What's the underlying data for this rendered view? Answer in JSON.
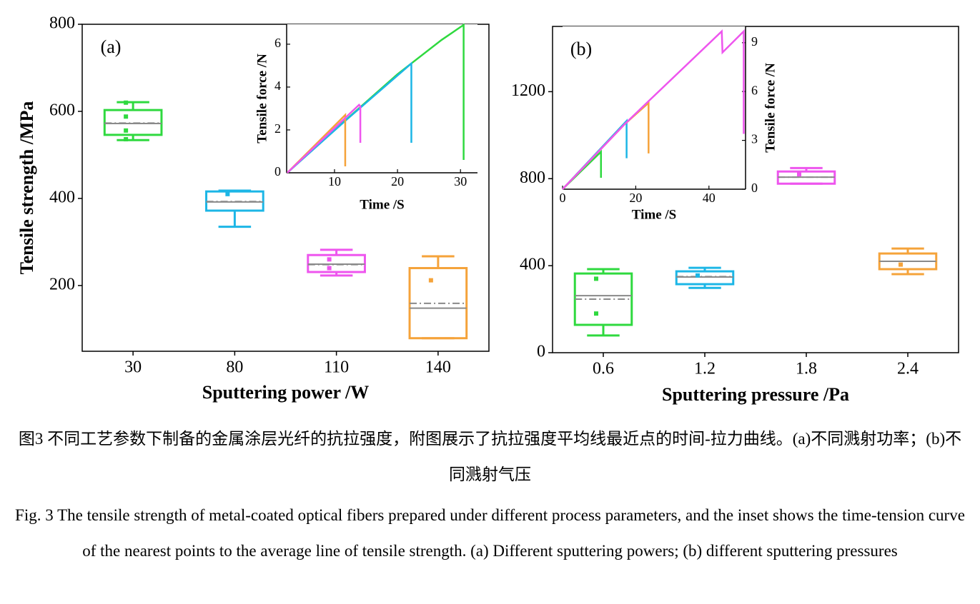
{
  "chart_data": [
    {
      "type": "box",
      "panel_label": "(a)",
      "x_label": "Sputtering power /W",
      "y_label": "Tensile strength /MPa",
      "categories": [
        "30",
        "80",
        "110",
        "140"
      ],
      "colors": [
        "#2fd93f",
        "#1cb6e6",
        "#ee55ee",
        "#f5a33a"
      ],
      "whisker_high": [
        621,
        418,
        282,
        267
      ],
      "q3": [
        603,
        416,
        270,
        240
      ],
      "median": [
        572,
        392,
        249,
        148
      ],
      "mean": [
        573,
        393,
        248,
        159
      ],
      "q1": [
        546,
        372,
        231,
        79
      ],
      "whisker_low": [
        534,
        335,
        223,
        79
      ],
      "points": [
        [
          620,
          588,
          556,
          536
        ],
        [
          410
        ],
        [
          260,
          240
        ],
        [
          212
        ]
      ],
      "ylim": [
        49,
        800
      ],
      "yticks": [
        200,
        400,
        600,
        800
      ]
    },
    {
      "type": "line",
      "x_label": "Time /S",
      "y_label": "Tensile force /N",
      "y_axis_side": "left",
      "xlim": [
        2.4,
        32.7
      ],
      "xticks": [
        10,
        20,
        30
      ],
      "ylim": [
        0,
        6.93
      ],
      "yticks": [
        0,
        2,
        4,
        6
      ],
      "series": [
        {
          "color": "#2fd93f",
          "x": [
            2.5,
            10,
            20,
            27,
            30.5,
            30.5
          ],
          "values": [
            0,
            2,
            4.6,
            6.2,
            6.9,
            0.6
          ]
        },
        {
          "color": "#1cb6e6",
          "x": [
            2.5,
            12,
            22.2,
            22.2
          ],
          "values": [
            0,
            2.5,
            5.1,
            1.4
          ]
        },
        {
          "color": "#f5a33a",
          "x": [
            2.5,
            11.7,
            11.7
          ],
          "values": [
            0,
            2.7,
            0.3
          ]
        },
        {
          "color": "#ee55ee",
          "x": [
            2.5,
            13.9,
            14.1,
            14.1
          ],
          "values": [
            0,
            3.17,
            3.1,
            1.4
          ]
        }
      ]
    },
    {
      "type": "box",
      "panel_label": "(b)",
      "x_label": "Sputtering pressure /Pa",
      "categories": [
        "0.6",
        "1.2",
        "1.8",
        "2.4"
      ],
      "colors": [
        "#2fd93f",
        "#1cb6e6",
        "#ee55ee",
        "#f5a33a"
      ],
      "whisker_high": [
        384,
        390,
        849,
        479
      ],
      "q3": [
        364,
        374,
        833,
        456
      ],
      "median": [
        262,
        348,
        807,
        420
      ],
      "mean": [
        246,
        350,
        807,
        420
      ],
      "q1": [
        128,
        315,
        777,
        384
      ],
      "whisker_low": [
        79,
        298,
        777,
        361
      ],
      "points": [
        [
          340,
          180
        ],
        [
          355
        ],
        [
          820
        ],
        [
          405
        ]
      ],
      "ylim": [
        0,
        1500
      ],
      "yticks": [
        0,
        400,
        800,
        1200
      ]
    },
    {
      "type": "line",
      "x_label": "Time /S",
      "y_label": "Tensile force /N",
      "y_axis_side": "right",
      "xlim": [
        0,
        50
      ],
      "xticks": [
        0,
        20,
        40
      ],
      "ylim": [
        0,
        10
      ],
      "yticks": [
        0,
        3,
        6,
        9
      ],
      "series": [
        {
          "color": "#2fd93f",
          "x": [
            0,
            10.5,
            10.5
          ],
          "values": [
            0,
            2.3,
            0.7
          ]
        },
        {
          "color": "#1cb6e6",
          "x": [
            0,
            17.5,
            17.5
          ],
          "values": [
            0,
            4.2,
            1.9
          ]
        },
        {
          "color": "#f5a33a",
          "x": [
            0,
            17,
            23.5,
            23.5
          ],
          "values": [
            0,
            4,
            5.3,
            2.2
          ]
        },
        {
          "color": "#ee55ee",
          "x": [
            0,
            17,
            23,
            43.5,
            43.7,
            49.5,
            49.5
          ],
          "values": [
            0,
            4,
            5.3,
            9.7,
            8.4,
            9.7,
            3.4
          ]
        }
      ]
    }
  ],
  "caption": {
    "zh": "图3  不同工艺参数下制备的金属涂层光纤的抗拉强度，附图展示了抗拉强度平均线最近点的时间-拉力曲线。(a)不同溅射功率；(b)不同溅射气压",
    "en": "Fig. 3 The tensile strength of metal-coated optical fibers prepared under different process parameters, and the inset shows the time-tension curve of the nearest points to the average line of tensile strength. (a) Different sputtering powers; (b) different sputtering pressures"
  }
}
